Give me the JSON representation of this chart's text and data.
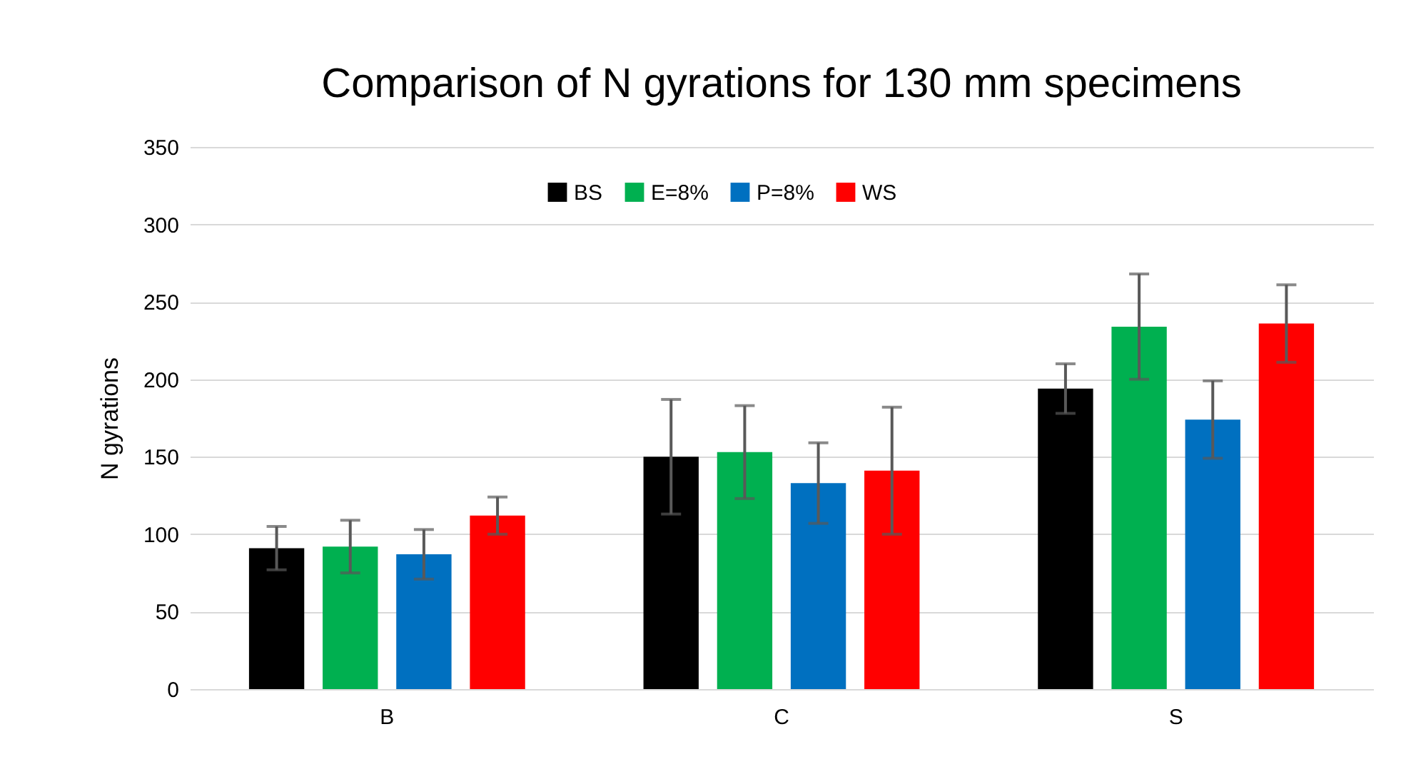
{
  "chart_data": {
    "type": "bar",
    "title": "Comparison  of N gyrations for 130 mm specimens",
    "ylabel": "N gyrations",
    "categories": [
      "B",
      "C",
      "S"
    ],
    "series": [
      {
        "name": "BS",
        "color": "#000000",
        "values": [
          91,
          150,
          194
        ],
        "errors": [
          14,
          37,
          16
        ]
      },
      {
        "name": "E=8%",
        "color": "#00b050",
        "values": [
          92,
          153,
          234
        ],
        "errors": [
          17,
          30,
          34
        ]
      },
      {
        "name": "P=8%",
        "color": "#0070c0",
        "values": [
          87,
          133,
          174
        ],
        "errors": [
          16,
          26,
          25
        ]
      },
      {
        "name": "WS",
        "color": "#ff0000",
        "values": [
          112,
          141,
          236
        ],
        "errors": [
          12,
          41,
          25
        ]
      }
    ],
    "ylim": [
      0,
      350
    ],
    "yticks": [
      0,
      50,
      100,
      150,
      200,
      250,
      300,
      350
    ],
    "grid": "y",
    "legend": "top"
  }
}
